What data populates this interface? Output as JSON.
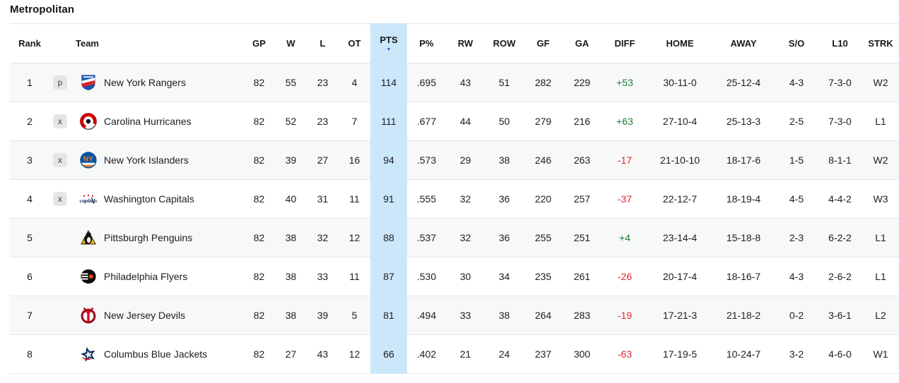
{
  "title": "Metropolitan",
  "icons": {
    "sort_desc": "▼"
  },
  "colors": {
    "pts_highlight": "#cbe7fa",
    "positive_diff": "#1e7e34",
    "negative_diff": "#e0282e",
    "sort_arrow": "#4150e0",
    "badge_bg": "#e4e5e7",
    "row_alt_bg": "#f7f8f8",
    "divider": "#e4e6e8"
  },
  "sort": {
    "column": "PTS",
    "direction": "desc"
  },
  "columns": [
    {
      "key": "rank",
      "label": "Rank"
    },
    {
      "key": "team",
      "label": "Team"
    },
    {
      "key": "gp",
      "label": "GP"
    },
    {
      "key": "w",
      "label": "W"
    },
    {
      "key": "l",
      "label": "L"
    },
    {
      "key": "ot",
      "label": "OT"
    },
    {
      "key": "pts",
      "label": "PTS"
    },
    {
      "key": "pct",
      "label": "P%"
    },
    {
      "key": "rw",
      "label": "RW"
    },
    {
      "key": "row",
      "label": "ROW"
    },
    {
      "key": "gf",
      "label": "GF"
    },
    {
      "key": "ga",
      "label": "GA"
    },
    {
      "key": "diff",
      "label": "DIFF"
    },
    {
      "key": "home",
      "label": "HOME"
    },
    {
      "key": "away",
      "label": "AWAY"
    },
    {
      "key": "so",
      "label": "S/O"
    },
    {
      "key": "l10",
      "label": "L10"
    },
    {
      "key": "strk",
      "label": "STRK"
    }
  ],
  "rows": [
    {
      "rank": "1",
      "clinch": "p",
      "team": "New York Rangers",
      "logo": "nyr",
      "gp": "82",
      "w": "55",
      "l": "23",
      "ot": "4",
      "pts": "114",
      "pct": ".695",
      "rw": "43",
      "row": "51",
      "gf": "282",
      "ga": "229",
      "diff": "+53",
      "home": "30-11-0",
      "away": "25-12-4",
      "so": "4-3",
      "l10": "7-3-0",
      "strk": "W2"
    },
    {
      "rank": "2",
      "clinch": "x",
      "team": "Carolina Hurricanes",
      "logo": "car",
      "gp": "82",
      "w": "52",
      "l": "23",
      "ot": "7",
      "pts": "111",
      "pct": ".677",
      "rw": "44",
      "row": "50",
      "gf": "279",
      "ga": "216",
      "diff": "+63",
      "home": "27-10-4",
      "away": "25-13-3",
      "so": "2-5",
      "l10": "7-3-0",
      "strk": "L1"
    },
    {
      "rank": "3",
      "clinch": "x",
      "team": "New York Islanders",
      "logo": "nyi",
      "gp": "82",
      "w": "39",
      "l": "27",
      "ot": "16",
      "pts": "94",
      "pct": ".573",
      "rw": "29",
      "row": "38",
      "gf": "246",
      "ga": "263",
      "diff": "-17",
      "home": "21-10-10",
      "away": "18-17-6",
      "so": "1-5",
      "l10": "8-1-1",
      "strk": "W2"
    },
    {
      "rank": "4",
      "clinch": "x",
      "team": "Washington Capitals",
      "logo": "wsh",
      "gp": "82",
      "w": "40",
      "l": "31",
      "ot": "11",
      "pts": "91",
      "pct": ".555",
      "rw": "32",
      "row": "36",
      "gf": "220",
      "ga": "257",
      "diff": "-37",
      "home": "22-12-7",
      "away": "18-19-4",
      "so": "4-5",
      "l10": "4-4-2",
      "strk": "W3"
    },
    {
      "rank": "5",
      "clinch": "",
      "team": "Pittsburgh Penguins",
      "logo": "pit",
      "gp": "82",
      "w": "38",
      "l": "32",
      "ot": "12",
      "pts": "88",
      "pct": ".537",
      "rw": "32",
      "row": "36",
      "gf": "255",
      "ga": "251",
      "diff": "+4",
      "home": "23-14-4",
      "away": "15-18-8",
      "so": "2-3",
      "l10": "6-2-2",
      "strk": "L1"
    },
    {
      "rank": "6",
      "clinch": "",
      "team": "Philadelphia Flyers",
      "logo": "phi",
      "gp": "82",
      "w": "38",
      "l": "33",
      "ot": "11",
      "pts": "87",
      "pct": ".530",
      "rw": "30",
      "row": "34",
      "gf": "235",
      "ga": "261",
      "diff": "-26",
      "home": "20-17-4",
      "away": "18-16-7",
      "so": "4-3",
      "l10": "2-6-2",
      "strk": "L1"
    },
    {
      "rank": "7",
      "clinch": "",
      "team": "New Jersey Devils",
      "logo": "njd",
      "gp": "82",
      "w": "38",
      "l": "39",
      "ot": "5",
      "pts": "81",
      "pct": ".494",
      "rw": "33",
      "row": "38",
      "gf": "264",
      "ga": "283",
      "diff": "-19",
      "home": "17-21-3",
      "away": "21-18-2",
      "so": "0-2",
      "l10": "3-6-1",
      "strk": "L2"
    },
    {
      "rank": "8",
      "clinch": "",
      "team": "Columbus Blue Jackets",
      "logo": "cbj",
      "gp": "82",
      "w": "27",
      "l": "43",
      "ot": "12",
      "pts": "66",
      "pct": ".402",
      "rw": "21",
      "row": "24",
      "gf": "237",
      "ga": "300",
      "diff": "-63",
      "home": "17-19-5",
      "away": "10-24-7",
      "so": "3-2",
      "l10": "4-6-0",
      "strk": "W1"
    }
  ]
}
